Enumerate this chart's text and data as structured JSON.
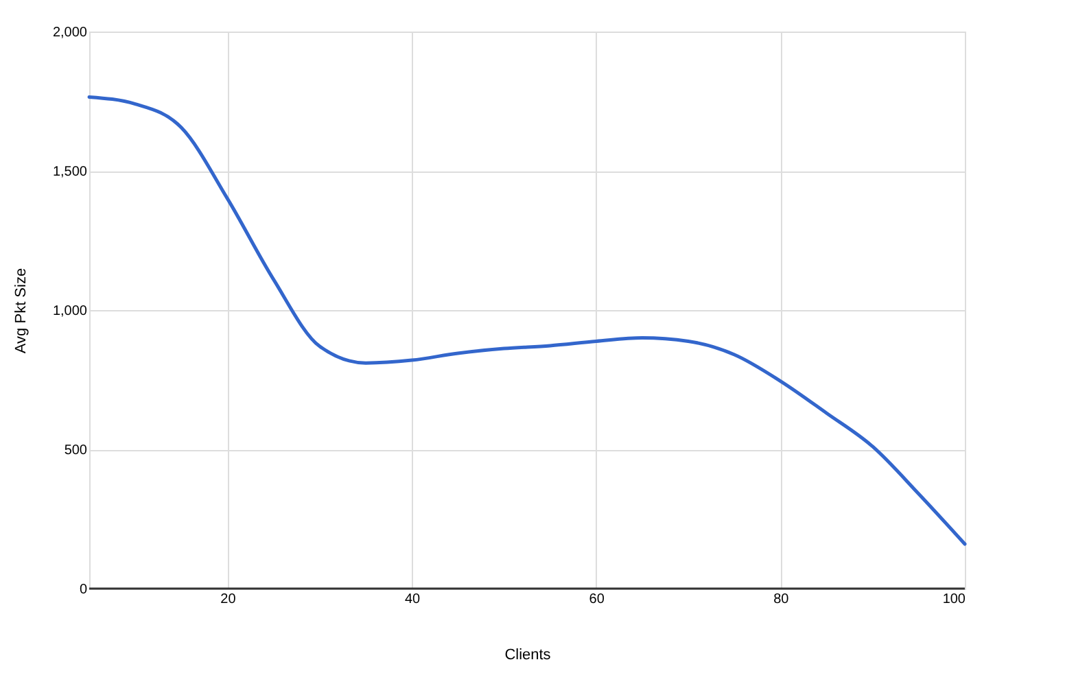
{
  "chart_data": {
    "type": "line",
    "xlabel": "Clients",
    "ylabel": "Avg Pkt Size",
    "x": [
      5,
      10,
      15,
      20,
      25,
      30,
      35,
      40,
      45,
      50,
      55,
      60,
      65,
      70,
      75,
      80,
      85,
      90,
      95,
      100
    ],
    "series": [
      {
        "color": "#3366cc",
        "values": [
          1765,
          1740,
          1655,
          1400,
          1110,
          870,
          810,
          820,
          845,
          862,
          872,
          888,
          900,
          888,
          840,
          745,
          630,
          510,
          340,
          160
        ]
      }
    ],
    "xlim": [
      5,
      100
    ],
    "xticks": [
      20,
      40,
      60,
      80,
      100
    ],
    "ylim": [
      0,
      2000
    ],
    "yticks": [
      0,
      500,
      {
        "value": 1000,
        "label": "1,000"
      },
      {
        "value": 1500,
        "label": "1,500"
      },
      {
        "value": 2000,
        "label": "2,000"
      }
    ],
    "grid": true,
    "marker": "none",
    "line_style": "solid"
  }
}
